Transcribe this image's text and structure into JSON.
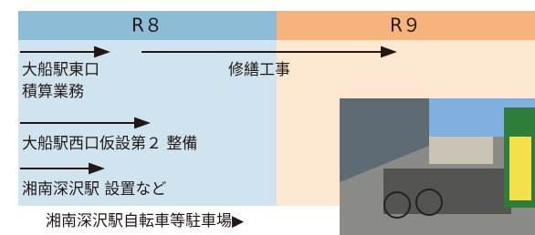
{
  "header": {
    "periods": [
      "R８",
      "R９"
    ]
  },
  "items": [
    {
      "lines": [
        "大船駅東口",
        "積算業務"
      ],
      "note": "修繕工事"
    },
    {
      "lines": [
        "大船駅西口仮設第２ 整備"
      ]
    },
    {
      "lines": [
        "湘南深沢駅 設置など"
      ]
    }
  ],
  "caption": "湘南深沢駅自転車等駐車場▶"
}
